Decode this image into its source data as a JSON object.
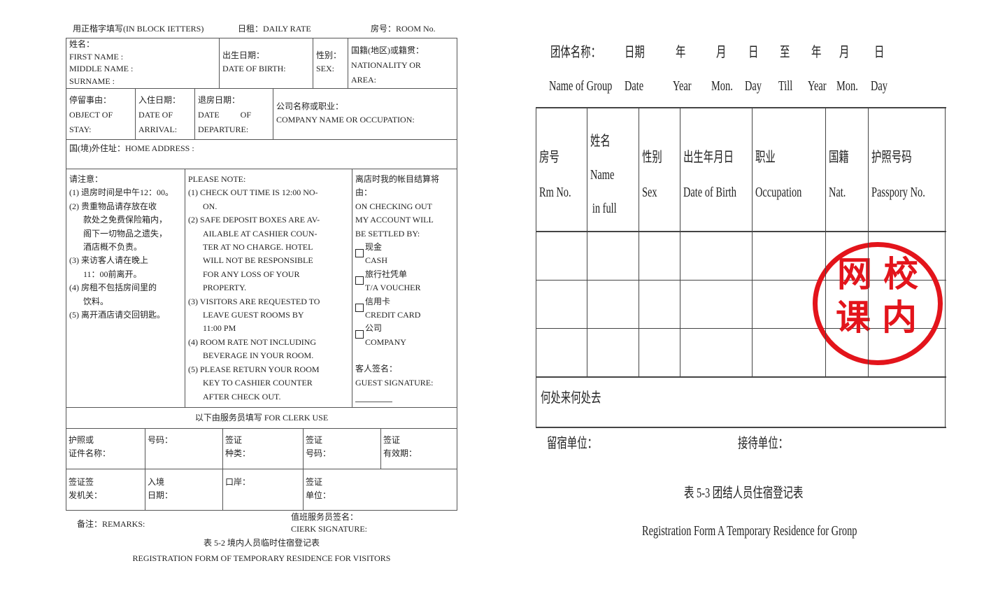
{
  "form1": {
    "header": {
      "block": "用正楷字填写(IN BLOCK IETTERS)",
      "rate": "日租：DAILY RATE",
      "room": "房号：ROOM No."
    },
    "name": [
      "姓名：",
      "FIRST NAME :",
      "MIDDLE NAME :",
      "SURNAME :"
    ],
    "dob": [
      "出生日期：",
      "DATE OF BIRTH:"
    ],
    "sex": [
      "性别：",
      "SEX:"
    ],
    "nationality": [
      "国籍(地区)或籍贯：",
      "NATIONALITY OR",
      "AREA:"
    ],
    "object": [
      "停留事由：",
      "OBJECT OF",
      "STAY:"
    ],
    "arrival": [
      "入住日期：",
      "DATE OF",
      "ARRIVAL:"
    ],
    "departure": [
      "退房日期：",
      "DATE          OF",
      "DEPARTURE:"
    ],
    "company": [
      "公司名称或职业：",
      "COMPANY NAME OR OCCUPATION:"
    ],
    "address": "国(境)外住址：HOME ADDRESS :",
    "notes_cn": [
      "请注意：",
      "(1) 退房时间是中午12：00。",
      "(2) 贵重物品请存放在收",
      "款处之免费保险箱内，",
      "阁下一切物品之遗失，",
      "酒店概不负责。",
      "(3) 来访客人请在晚上",
      "11：00前离开。",
      "(4) 房租不包括房间里的",
      "饮料。",
      "(5) 离开酒店请交回钥匙。"
    ],
    "notes_en": [
      "PLEASE NOTE:",
      "(1)  CHECK  OUT  TIME IS 12:00  NO-",
      "ON.",
      "(2)  SAFE DEPOSIT BOXES ARE AV-",
      "AILABLE AT CASHIER COUN-",
      "TER AT NO CHARGE. HOTEL",
      "WILL NOT BE RESPONSIBLE",
      "FOR ANY LOSS OF YOUR",
      "PROPERTY.",
      "(3)  VISITORS ARE REQUESTED TO",
      "LEAVE GUEST ROOMS BY",
      "11:00 PM",
      "(4)  ROOM RATE NOT INCLUDING",
      "BEVERAGE IN YOUR ROOM.",
      "(5)  PLEASE RETURN YOUR ROOM",
      "KEY TO CASHIER COUNTER",
      "AFTER CHECK OUT."
    ],
    "settle": [
      "离店时我的帐目结算将",
      "由：",
      "ON CHECKING OUT",
      "MY ACCOUNT WILL",
      "BE SETTLED BY:"
    ],
    "options": [
      [
        "现金",
        "CASH"
      ],
      [
        "旅行社凭单",
        "T/A  VOUCHER"
      ],
      [
        "信用卡",
        "CREDIT CARD"
      ],
      [
        "公司",
        "COMPANY"
      ]
    ],
    "guest_sig": [
      "客人签名：",
      "GUEST SIGNATURE:"
    ],
    "clerk_use": "以下由服务员填写 FOR CLERK USE",
    "clerk_row1": [
      [
        "护照或",
        "证件名称："
      ],
      [
        "号码：",
        ""
      ],
      [
        "签证",
        "种类："
      ],
      [
        "签证",
        "号码："
      ],
      [
        "签证",
        "有效期："
      ]
    ],
    "clerk_row2": [
      [
        "签证签",
        "发机关："
      ],
      [
        "入境",
        "日期："
      ],
      [
        "口岸：",
        ""
      ],
      [
        "签证",
        "单位："
      ]
    ],
    "remarks": "备注：REMARKS:",
    "clerk_sig": [
      "值班服务员签名：",
      "CIERK SIGNATURE:"
    ],
    "caption_cn": "表 5-2 境内人员临时住宿登记表",
    "caption_en": "REGISTRATION FORM OF TEMPORARY RESIDENCE FOR VISITORS"
  },
  "form2": {
    "top_cn": [
      "团体名称：",
      "日期",
      "年",
      "月",
      "日",
      "至",
      "年",
      "月",
      "日"
    ],
    "top_en": [
      "Name of Group",
      "Date",
      "Year",
      "Mon.",
      "Day",
      "Till",
      "Year",
      "Mon.",
      "Day"
    ],
    "columns": [
      [
        "房号",
        "Rm No."
      ],
      [
        "姓名",
        "Name",
        "in full"
      ],
      [
        "性别",
        "Sex"
      ],
      [
        "出生年月日",
        "Date of Birth"
      ],
      [
        "职业",
        "Occupation"
      ],
      [
        "国籍",
        "Nat."
      ],
      [
        "护照号码",
        "Passpory No."
      ]
    ],
    "origin": "何处来何处去",
    "lodging_unit": "留宿单位：",
    "reception_unit": "接待单位：",
    "caption_cn": "表 5-3 团结人员住宿登记表",
    "caption_en": "Registration Form A Temporary Residence for Gronp"
  },
  "stamp": {
    "chars": [
      "网",
      "校",
      "课",
      "内"
    ],
    "color": "#e3141b"
  }
}
